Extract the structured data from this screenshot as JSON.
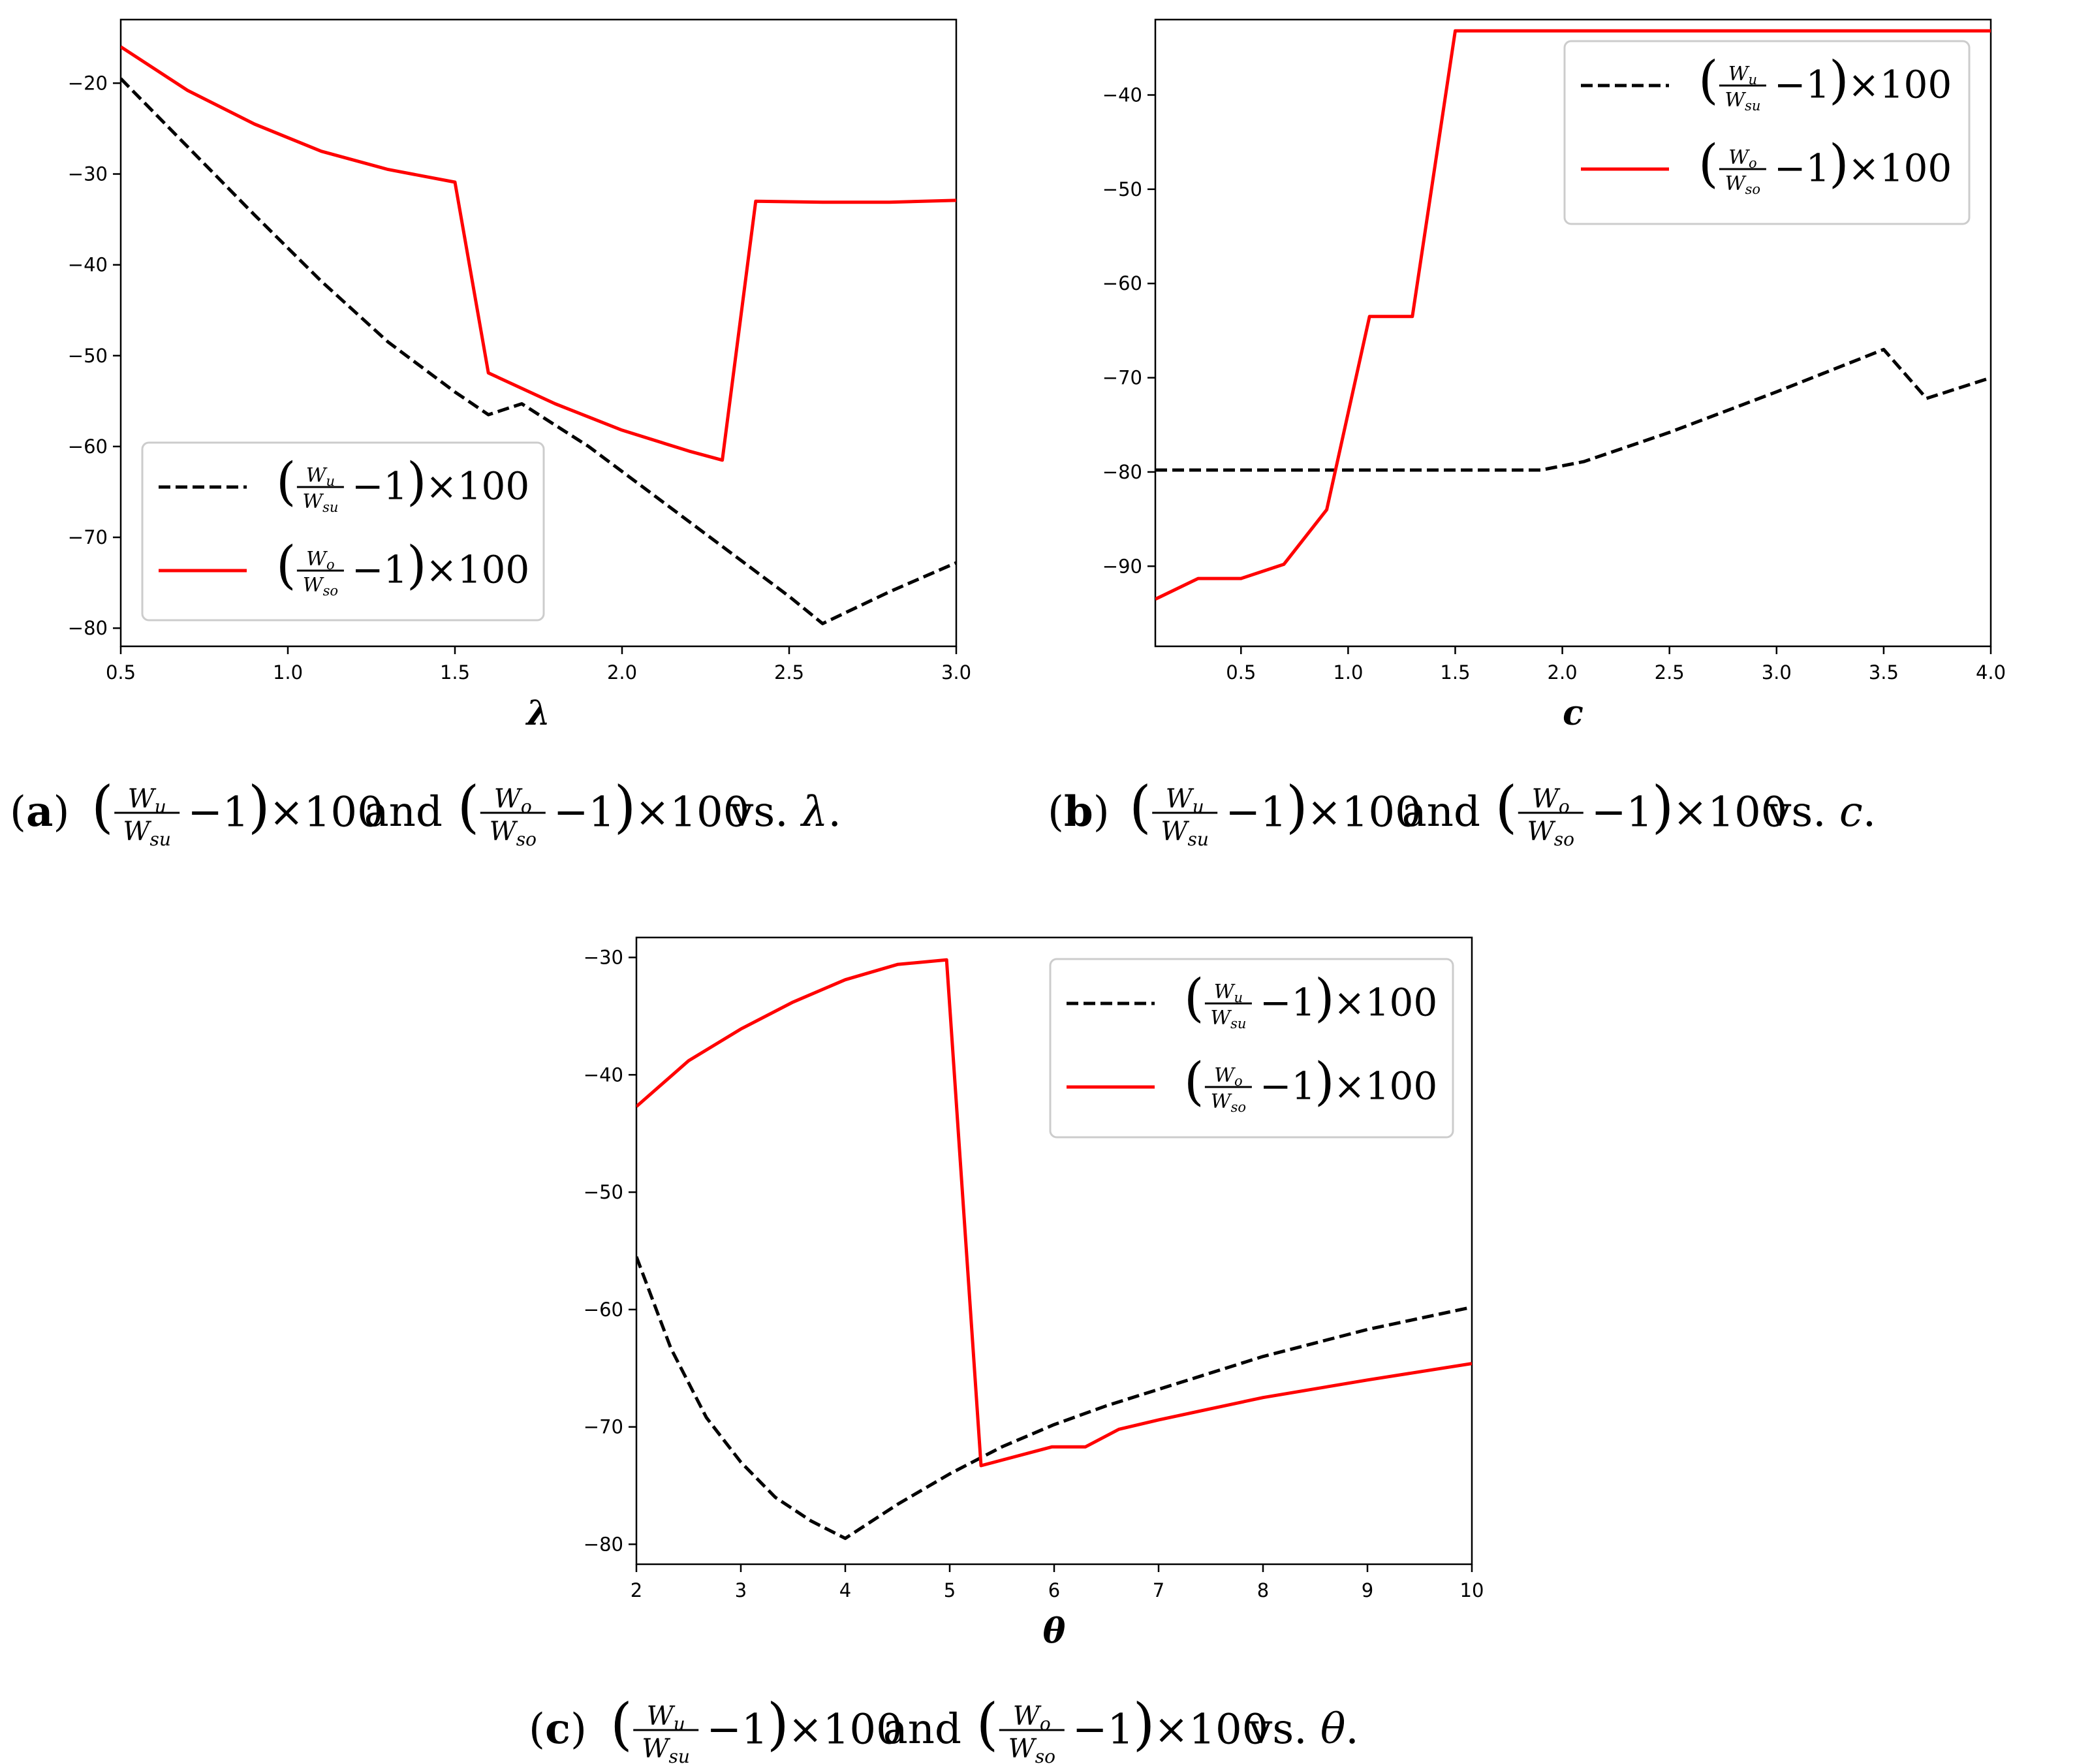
{
  "figure": {
    "series_labels": {
      "u": {
        "num": "W",
        "num_sub": "u",
        "den": "W",
        "den_sub": "su",
        "suffix": "×100",
        "minus_one": "−1"
      },
      "o": {
        "num": "W",
        "num_sub": "o",
        "den": "W",
        "den_sub": "so",
        "suffix": "×100",
        "minus_one": "−1"
      }
    },
    "colors": {
      "u": "#000000",
      "o": "#ff0000"
    }
  },
  "chart_data": [
    {
      "id": "a",
      "type": "line",
      "xlabel": "λ",
      "ylabel": "",
      "xlim": [
        0.5,
        3.0
      ],
      "ylim": [
        -82,
        -13
      ],
      "xticks": [
        "0.5",
        "1.0",
        "1.5",
        "2.0",
        "2.5",
        "3.0"
      ],
      "yticks": [
        "−20",
        "−30",
        "−40",
        "−50",
        "−60",
        "−70",
        "−80"
      ],
      "legend": "lower-left",
      "caption": {
        "tag": "a",
        "connector": "and",
        "vs": "vs.",
        "variable": "λ"
      },
      "series": [
        {
          "name": "u",
          "style": "dashed",
          "x": [
            0.5,
            0.7,
            0.9,
            1.1,
            1.3,
            1.5,
            1.6,
            1.7,
            1.9,
            2.1,
            2.3,
            2.5,
            2.6,
            2.8,
            3.0
          ],
          "y": [
            -19.5,
            -27.0,
            -34.5,
            -41.8,
            -48.5,
            -54.0,
            -56.5,
            -55.3,
            -60.0,
            -65.5,
            -71.0,
            -76.5,
            -79.5,
            -76.0,
            -72.8
          ]
        },
        {
          "name": "o",
          "style": "solid",
          "x": [
            0.5,
            0.7,
            0.9,
            1.1,
            1.3,
            1.5,
            1.6,
            1.8,
            2.0,
            2.2,
            2.3,
            2.4,
            2.6,
            2.8,
            3.0
          ],
          "y": [
            -16.0,
            -20.8,
            -24.5,
            -27.5,
            -29.5,
            -30.9,
            -51.9,
            -55.3,
            -58.2,
            -60.5,
            -61.5,
            -33.0,
            -33.1,
            -33.1,
            -32.9
          ]
        }
      ]
    },
    {
      "id": "b",
      "type": "line",
      "xlabel": "c",
      "ylabel": "",
      "xlim": [
        0.1,
        4.0
      ],
      "ylim": [
        -98.5,
        -32.0
      ],
      "xticks": [
        "0.5",
        "1.0",
        "1.5",
        "2.0",
        "2.5",
        "3.0",
        "3.5",
        "4.0"
      ],
      "yticks": [
        "−40",
        "−50",
        "−60",
        "−70",
        "−80",
        "−90"
      ],
      "legend": "top-right",
      "caption": {
        "tag": "b",
        "connector": "and",
        "vs": "vs.",
        "variable": "c"
      },
      "series": [
        {
          "name": "u",
          "style": "dashed",
          "x": [
            0.1,
            0.5,
            1.0,
            1.5,
            1.9,
            2.1,
            2.5,
            3.0,
            3.5,
            3.7,
            4.0
          ],
          "y": [
            -79.8,
            -79.8,
            -79.8,
            -79.8,
            -79.8,
            -78.9,
            -75.8,
            -71.5,
            -67.0,
            -72.2,
            -70.0
          ]
        },
        {
          "name": "o",
          "style": "solid",
          "x": [
            0.1,
            0.3,
            0.5,
            0.7,
            0.9,
            1.1,
            1.3,
            1.5,
            2.0,
            2.5,
            3.0,
            3.5,
            4.0
          ],
          "y": [
            -93.5,
            -91.3,
            -91.3,
            -89.8,
            -84.0,
            -63.5,
            -63.5,
            -33.2,
            -33.2,
            -33.2,
            -33.2,
            -33.2,
            -33.2
          ]
        }
      ]
    },
    {
      "id": "c",
      "type": "line",
      "xlabel": "θ",
      "ylabel": "",
      "xlim": [
        2,
        10
      ],
      "ylim": [
        -81.7,
        -28.3
      ],
      "xticks": [
        "2",
        "3",
        "4",
        "5",
        "6",
        "7",
        "8",
        "9",
        "10"
      ],
      "yticks": [
        "−30",
        "−40",
        "−50",
        "−60",
        "−70",
        "−80"
      ],
      "legend": "top-right",
      "caption": {
        "tag": "c",
        "connector": "and",
        "vs": "vs.",
        "variable": "θ"
      },
      "series": [
        {
          "name": "u",
          "style": "dashed",
          "x": [
            2.0,
            2.33,
            2.67,
            3.0,
            3.33,
            3.67,
            4.0,
            4.5,
            5.0,
            5.5,
            6.0,
            6.5,
            7.0,
            8.0,
            9.0,
            10.0
          ],
          "y": [
            -55.5,
            -63.3,
            -69.2,
            -73.0,
            -76.0,
            -78.0,
            -79.5,
            -76.6,
            -74.0,
            -71.7,
            -69.8,
            -68.2,
            -66.8,
            -64.0,
            -61.7,
            -59.8
          ]
        },
        {
          "name": "o",
          "style": "solid",
          "x": [
            2.0,
            2.5,
            3.0,
            3.5,
            4.0,
            4.5,
            4.97,
            5.3,
            5.98,
            6.3,
            6.62,
            7.0,
            8.0,
            9.0,
            10.0
          ],
          "y": [
            -42.7,
            -38.8,
            -36.1,
            -33.8,
            -31.9,
            -30.6,
            -30.2,
            -73.3,
            -71.7,
            -71.7,
            -70.2,
            -69.4,
            -67.5,
            -66.0,
            -64.6
          ]
        }
      ]
    }
  ]
}
